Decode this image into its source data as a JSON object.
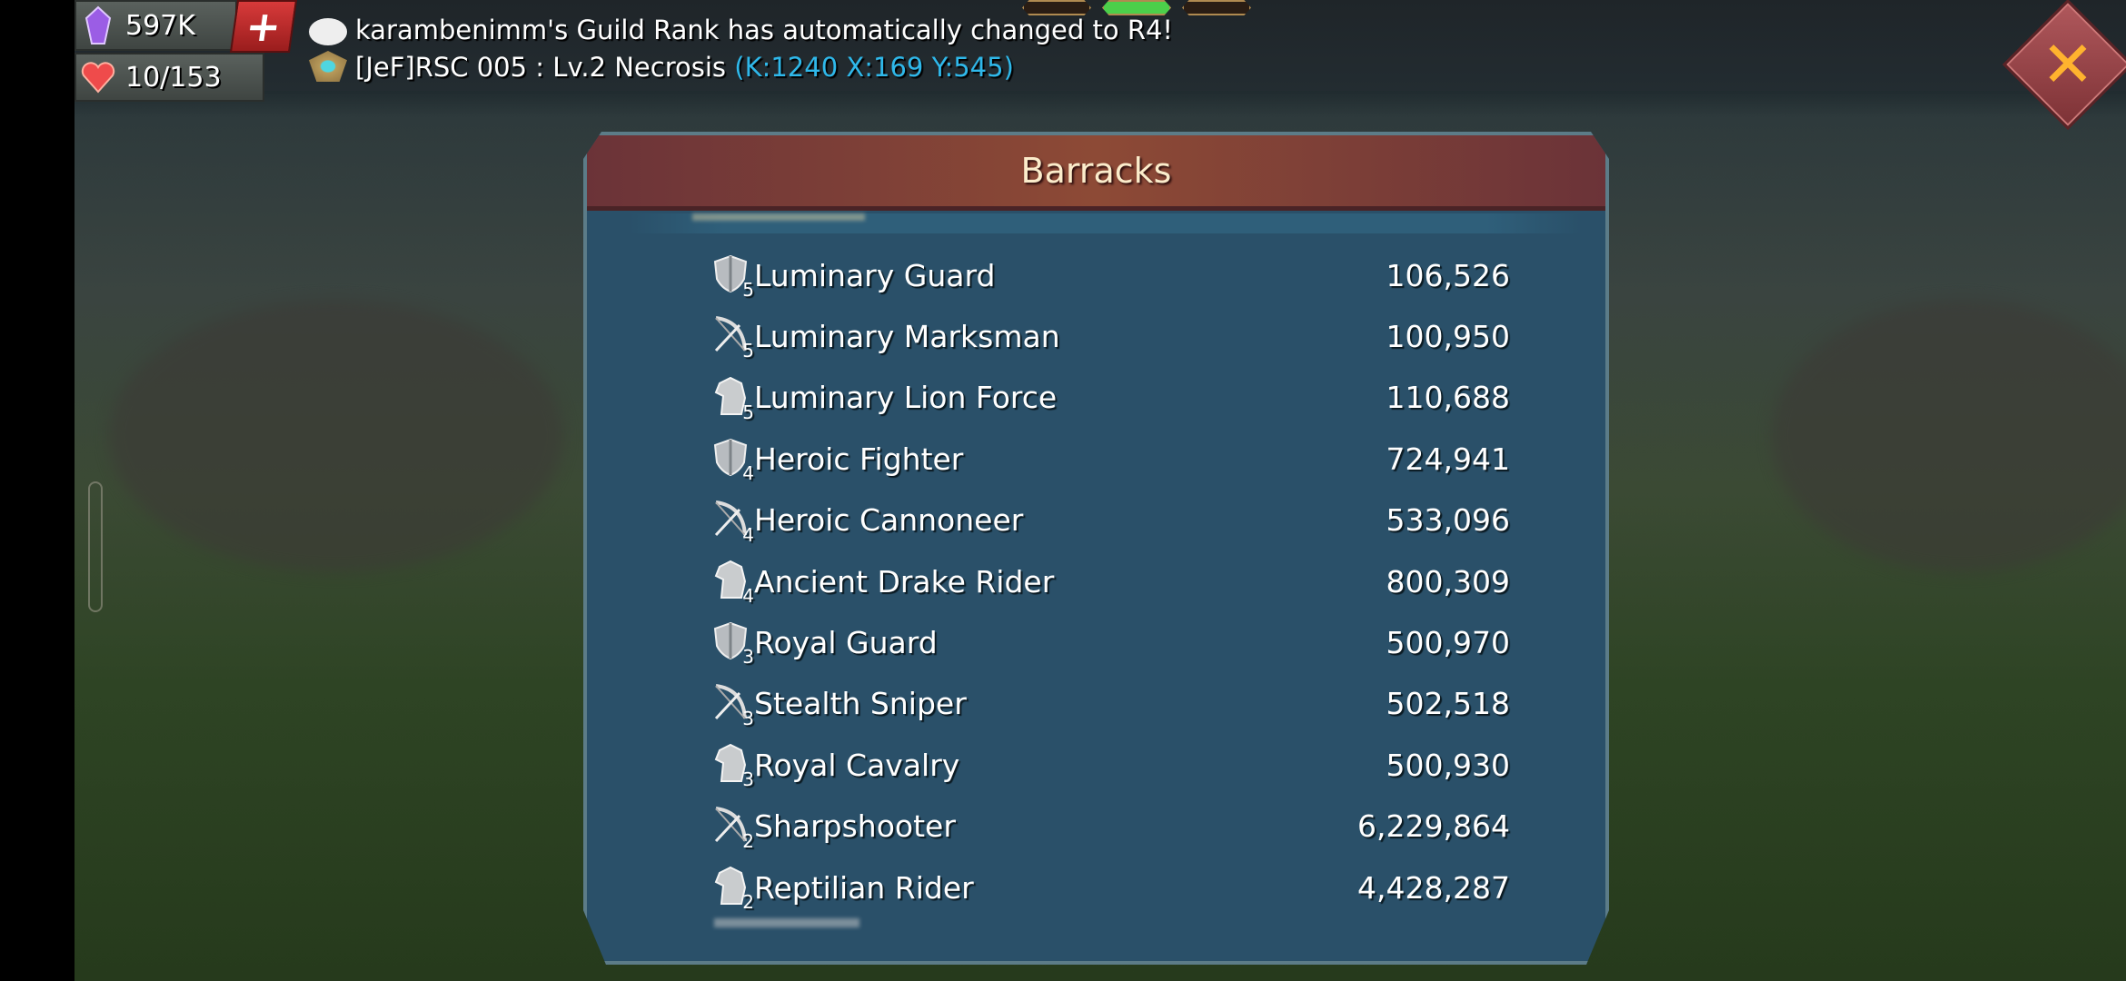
{
  "resources": {
    "gems": {
      "icon": "purple-gem-icon",
      "value": "597K",
      "add_label": "+"
    },
    "stamina": {
      "icon": "heart-icon",
      "value": "10/153"
    }
  },
  "chat": {
    "line1": {
      "icon": "speech-bubble-icon",
      "text": "karambenimm's Guild Rank has automatically changed to R4!"
    },
    "line2": {
      "icon": "guild-badge-icon",
      "text": "[JeF]RSC 005 : Lv.2 Necrosis ",
      "coords": "(K:1240 X:169 Y:545)",
      "coords_color": "#2fb8ea"
    }
  },
  "page_tabs": {
    "count": 3,
    "active_index": 1
  },
  "close_label": "✕",
  "panel": {
    "title": "Barracks",
    "rows": [
      {
        "type": "infantry",
        "tier": "5",
        "name": "Luminary Guard",
        "count": "106,526"
      },
      {
        "type": "ranged",
        "tier": "5",
        "name": "Luminary Marksman",
        "count": "100,950"
      },
      {
        "type": "cavalry",
        "tier": "5",
        "name": "Luminary Lion Force",
        "count": "110,688"
      },
      {
        "type": "infantry",
        "tier": "4",
        "name": "Heroic Fighter",
        "count": "724,941"
      },
      {
        "type": "ranged",
        "tier": "4",
        "name": "Heroic Cannoneer",
        "count": "533,096"
      },
      {
        "type": "cavalry",
        "tier": "4",
        "name": "Ancient Drake Rider",
        "count": "800,309"
      },
      {
        "type": "infantry",
        "tier": "3",
        "name": "Royal Guard",
        "count": "500,970"
      },
      {
        "type": "ranged",
        "tier": "3",
        "name": "Stealth Sniper",
        "count": "502,518"
      },
      {
        "type": "cavalry",
        "tier": "3",
        "name": "Royal Cavalry",
        "count": "500,930"
      },
      {
        "type": "ranged",
        "tier": "2",
        "name": "Sharpshooter",
        "count": "6,229,864"
      },
      {
        "type": "cavalry",
        "tier": "2",
        "name": "Reptilian Rider",
        "count": "4,428,287"
      }
    ]
  }
}
